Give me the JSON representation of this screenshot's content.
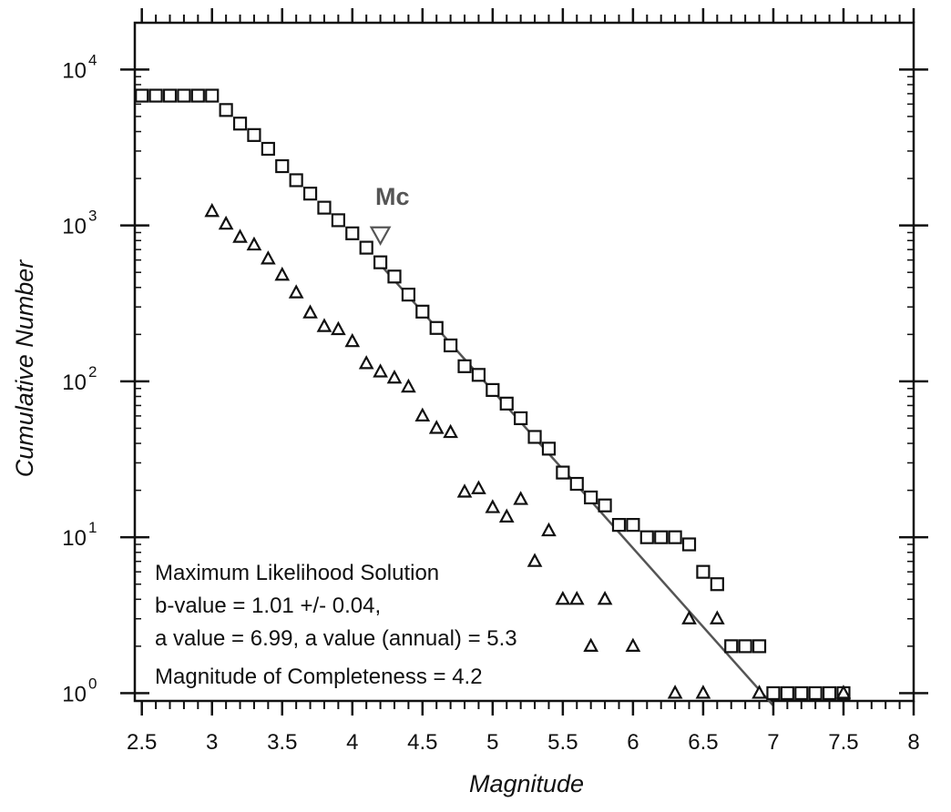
{
  "chart_data": {
    "type": "scatter",
    "xlabel": "Magnitude",
    "ylabel": "Cumulative Number",
    "xlim": [
      2.45,
      8.0
    ],
    "ylim_log10": [
      -0.05,
      4.3
    ],
    "y_scale": "log",
    "x_ticks": [
      "2.5",
      "3",
      "3.5",
      "4",
      "4.5",
      "5",
      "5.5",
      "6",
      "6.5",
      "7",
      "7.5",
      "8"
    ],
    "y_ticks": [
      {
        "base": "10",
        "exp": "0",
        "value": 1
      },
      {
        "base": "10",
        "exp": "1",
        "value": 10
      },
      {
        "base": "10",
        "exp": "2",
        "value": 100
      },
      {
        "base": "10",
        "exp": "3",
        "value": 1000
      },
      {
        "base": "10",
        "exp": "4",
        "value": 10000
      }
    ],
    "grid": false,
    "series": [
      {
        "marker": "square",
        "x": [
          2.5,
          2.6,
          2.7,
          2.8,
          2.9,
          3.0,
          3.1,
          3.2,
          3.3,
          3.4,
          3.5,
          3.6,
          3.7,
          3.8,
          3.9,
          4.0,
          4.1,
          4.2,
          4.3,
          4.4,
          4.5,
          4.6,
          4.7,
          4.8,
          4.9,
          5.0,
          5.1,
          5.2,
          5.3,
          5.4,
          5.5,
          5.6,
          5.7,
          5.8,
          5.9,
          6.0,
          6.1,
          6.2,
          6.3,
          6.4,
          6.5,
          6.6,
          6.7,
          6.8,
          6.9,
          7.0,
          7.1,
          7.2,
          7.3,
          7.4,
          7.5
        ],
        "y": [
          6800,
          6800,
          6800,
          6800,
          6800,
          6800,
          5500,
          4500,
          3800,
          3100,
          2400,
          1950,
          1600,
          1300,
          1080,
          890,
          720,
          580,
          470,
          360,
          280,
          220,
          170,
          125,
          110,
          88,
          72,
          58,
          44,
          37,
          26,
          22,
          18,
          16,
          12,
          12,
          10,
          10,
          10,
          9,
          6,
          5,
          2,
          2,
          2,
          1,
          1,
          1,
          1,
          1,
          1
        ]
      },
      {
        "marker": "triangle",
        "x": [
          3.0,
          3.1,
          3.2,
          3.3,
          3.4,
          3.5,
          3.6,
          3.7,
          3.8,
          3.9,
          4.0,
          4.1,
          4.2,
          4.3,
          4.4,
          4.5,
          4.6,
          4.7,
          4.8,
          4.9,
          5.0,
          5.1,
          5.2,
          5.3,
          5.4,
          5.5,
          5.6,
          5.7,
          5.8,
          6.0,
          6.3,
          6.4,
          6.5,
          6.6,
          6.9,
          7.5
        ],
        "y": [
          1230,
          1020,
          840,
          750,
          610,
          480,
          370,
          275,
          225,
          215,
          180,
          130,
          115,
          105,
          92,
          60,
          50,
          47,
          19.5,
          20.5,
          15.5,
          13.5,
          17.5,
          7,
          11,
          4,
          4,
          2,
          4,
          2,
          1,
          3,
          1,
          3,
          1,
          1
        ]
      }
    ],
    "fit_line": {
      "a": 6.99,
      "b": 1.01,
      "x_range": [
        4.2,
        7.0
      ]
    },
    "mc_marker": {
      "label": "Mc",
      "x": 4.2,
      "y": 850
    },
    "annotation_lines": [
      "Maximum Likelihood Solution",
      "b-value = 1.01 +/- 0.04,",
      "a value = 6.99,  a value (annual) = 5.3",
      "Magnitude of Completeness = 4.2"
    ]
  }
}
